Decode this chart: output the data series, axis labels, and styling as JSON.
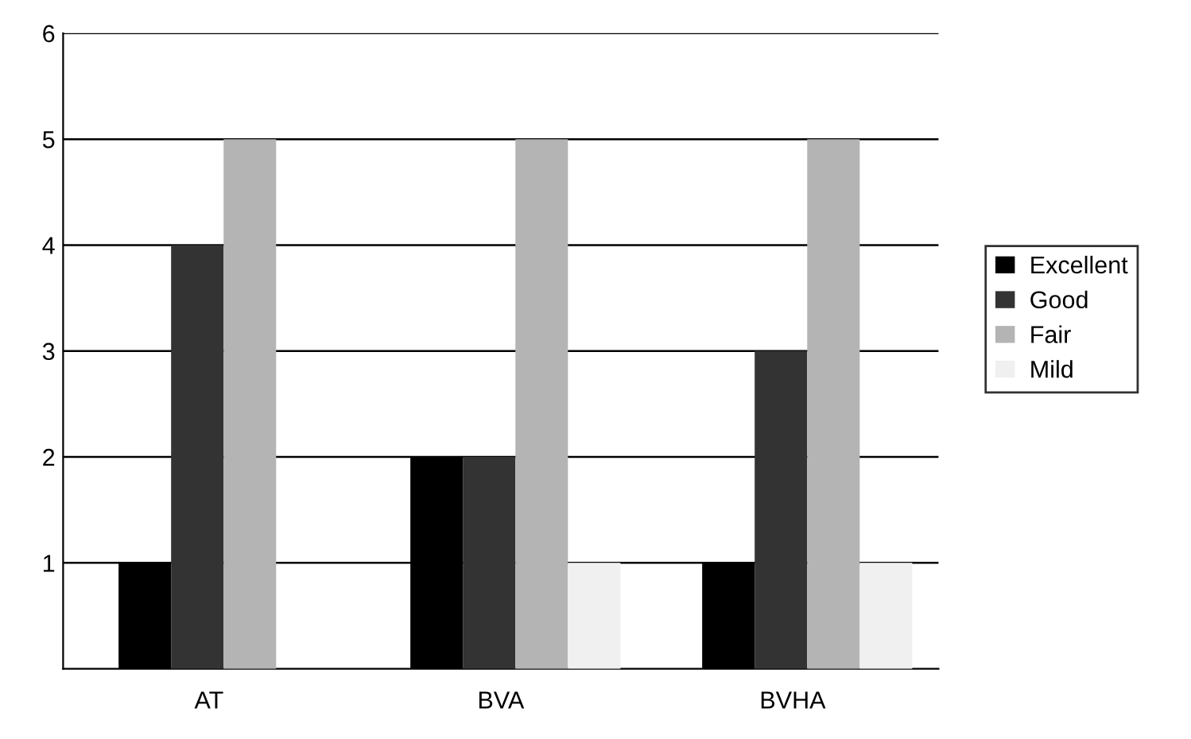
{
  "chart_data": {
    "type": "bar",
    "categories": [
      "AT",
      "BVA",
      "BVHA"
    ],
    "series": [
      {
        "name": "Excellent",
        "color": "#000000",
        "values": [
          1,
          2,
          1
        ]
      },
      {
        "name": "Good",
        "color": "#333333",
        "values": [
          4,
          2,
          3
        ]
      },
      {
        "name": "Fair",
        "color": "#b4b4b4",
        "values": [
          5,
          5,
          5
        ]
      },
      {
        "name": "Mild",
        "color": "#f0f0f0",
        "values": [
          0,
          1,
          1
        ]
      }
    ],
    "ylim": [
      0,
      6
    ],
    "yticks": [
      1,
      2,
      3,
      4,
      5,
      6
    ],
    "grid": "y",
    "legend": "right"
  }
}
